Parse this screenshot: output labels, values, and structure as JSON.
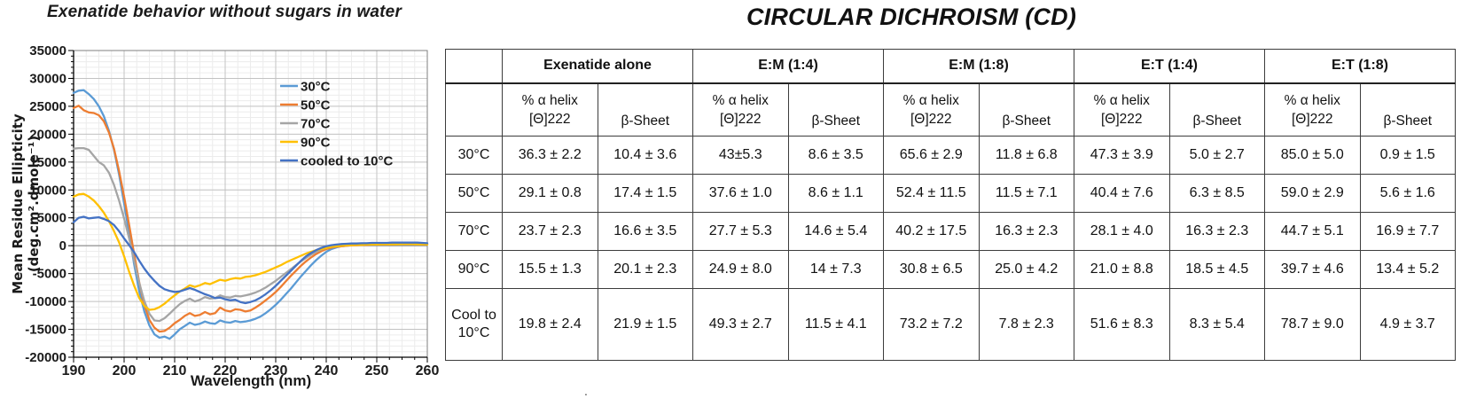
{
  "chart": {
    "title": "Exenatide behavior without sugars in water",
    "xlabel": "Wavelength (nm)",
    "ylabel": "Mean Residue Ellipticity (deg.cm².dmole⁻¹)"
  },
  "chart_data": {
    "type": "line",
    "title": "Exenatide behavior without sugars in water",
    "xlabel": "Wavelength (nm)",
    "ylabel": "Mean Residue Ellipticity (deg.cm².dmole⁻¹)",
    "xlim": [
      190,
      260
    ],
    "ylim": [
      -20000,
      35000
    ],
    "x_ticks": [
      190,
      200,
      210,
      220,
      230,
      240,
      250,
      260
    ],
    "y_ticks": [
      35000,
      30000,
      25000,
      20000,
      15000,
      10000,
      5000,
      0,
      -5000,
      -10000,
      -15000,
      -20000
    ],
    "x_minor_step": 2.5,
    "y_minor_step": 1000,
    "x_major_step": 10,
    "y_major_step": 5000,
    "grid": true,
    "legend_position": "upper-right-inside",
    "x_start": 190,
    "x_step": 1,
    "series": [
      {
        "name": "30°C",
        "color": "#5B9BD5",
        "values": [
          27400,
          27800,
          27900,
          27200,
          26300,
          25000,
          23200,
          20600,
          17200,
          12800,
          7600,
          2200,
          -3400,
          -8200,
          -11800,
          -14300,
          -15900,
          -16500,
          -16300,
          -16700,
          -15900,
          -15000,
          -14400,
          -13800,
          -14200,
          -14000,
          -13600,
          -13900,
          -14000,
          -13400,
          -13700,
          -13800,
          -13500,
          -13700,
          -13600,
          -13400,
          -13100,
          -12700,
          -12100,
          -11400,
          -10600,
          -9700,
          -8700,
          -7700,
          -6600,
          -5500,
          -4500,
          -3500,
          -2600,
          -1800,
          -1100,
          -600,
          -300,
          -100,
          0,
          100,
          150,
          200,
          200,
          250,
          250,
          300,
          300,
          300,
          350,
          350,
          350,
          350,
          350,
          300,
          300
        ]
      },
      {
        "name": "50°C",
        "color": "#ED7D31",
        "values": [
          24700,
          25100,
          24300,
          23900,
          23800,
          23400,
          22300,
          20300,
          17400,
          13400,
          8800,
          3700,
          -1600,
          -6600,
          -10600,
          -13300,
          -14700,
          -15400,
          -15300,
          -14700,
          -13900,
          -13300,
          -12600,
          -12100,
          -12600,
          -12400,
          -11900,
          -12300,
          -12100,
          -11100,
          -11600,
          -11800,
          -11400,
          -11500,
          -11800,
          -11600,
          -11100,
          -10500,
          -9800,
          -9100,
          -8300,
          -7400,
          -6400,
          -5400,
          -4500,
          -3600,
          -2800,
          -2100,
          -1500,
          -1000,
          -600,
          -350,
          -200,
          -100,
          0,
          50,
          100,
          150,
          150,
          200,
          200,
          250,
          250,
          250,
          300,
          300,
          300,
          300,
          300,
          250,
          250
        ]
      },
      {
        "name": "70°C",
        "color": "#A5A5A5",
        "values": [
          17400,
          17500,
          17500,
          17200,
          16100,
          15000,
          14400,
          13100,
          10900,
          8100,
          4900,
          1300,
          -2700,
          -6700,
          -9900,
          -12200,
          -13400,
          -13500,
          -13000,
          -12200,
          -11300,
          -10500,
          -9900,
          -9500,
          -10000,
          -9700,
          -9200,
          -9500,
          -9400,
          -8900,
          -9200,
          -9300,
          -9000,
          -9100,
          -8900,
          -8700,
          -8400,
          -8000,
          -7500,
          -6900,
          -6300,
          -5600,
          -4900,
          -4200,
          -3500,
          -2800,
          -2200,
          -1600,
          -1100,
          -700,
          -400,
          -200,
          -100,
          0,
          100,
          150,
          200,
          200,
          250,
          250,
          300,
          300,
          300,
          300,
          350,
          350,
          350,
          400,
          400,
          350,
          300
        ]
      },
      {
        "name": "90°C",
        "color": "#FFC000",
        "values": [
          8800,
          9200,
          9300,
          8800,
          8100,
          7100,
          5900,
          4400,
          2600,
          600,
          -1900,
          -4700,
          -7200,
          -9400,
          -10800,
          -11500,
          -11400,
          -11000,
          -10400,
          -9600,
          -8900,
          -8200,
          -7700,
          -7100,
          -7400,
          -7100,
          -6700,
          -6900,
          -6500,
          -6100,
          -6300,
          -6000,
          -5800,
          -5900,
          -5600,
          -5500,
          -5300,
          -5000,
          -4700,
          -4300,
          -3900,
          -3500,
          -3000,
          -2600,
          -2200,
          -1800,
          -1400,
          -1100,
          -800,
          -600,
          -400,
          -200,
          -100,
          0,
          50,
          100,
          150,
          150,
          200,
          200,
          200,
          250,
          250,
          250,
          250,
          300,
          300,
          300,
          250,
          250,
          200
        ]
      },
      {
        "name": "cooled to 10°C",
        "color": "#4472C4",
        "values": [
          4200,
          5000,
          5200,
          4900,
          5000,
          5100,
          4800,
          4400,
          3700,
          2600,
          1300,
          100,
          -1200,
          -2700,
          -4100,
          -5300,
          -6300,
          -7200,
          -7800,
          -8100,
          -8300,
          -8200,
          -7900,
          -7600,
          -7900,
          -8300,
          -8700,
          -9000,
          -9400,
          -9300,
          -9600,
          -9800,
          -9700,
          -10100,
          -10300,
          -10100,
          -9800,
          -9300,
          -8700,
          -8000,
          -7200,
          -6300,
          -5400,
          -4500,
          -3600,
          -2700,
          -1900,
          -1300,
          -800,
          -400,
          -100,
          100,
          200,
          300,
          350,
          400,
          400,
          450,
          450,
          500,
          500,
          500,
          500,
          550,
          550,
          550,
          550,
          550,
          550,
          500,
          450
        ]
      }
    ]
  },
  "table": {
    "title": "CIRCULAR DICHROISM (CD)",
    "groups": [
      "Exenatide alone",
      "E:M (1:4)",
      "E:M (1:8)",
      "E:T (1:4)",
      "E:T (1:8)"
    ],
    "sub": {
      "helix1": "% α helix",
      "helix2": "[Θ]222",
      "beta": "β-Sheet"
    },
    "rows": [
      {
        "label": "30°C",
        "values": [
          "36.3 ± 2.2",
          "10.4 ± 3.6",
          "43±5.3",
          "8.6 ± 3.5",
          "65.6 ± 2.9",
          "11.8 ± 6.8",
          "47.3 ± 3.9",
          "5.0 ± 2.7",
          "85.0 ± 5.0",
          "0.9 ± 1.5"
        ]
      },
      {
        "label": "50°C",
        "values": [
          "29.1 ± 0.8",
          "17.4 ± 1.5",
          "37.6 ± 1.0",
          "8.6 ± 1.1",
          "52.4 ± 11.5",
          "11.5 ± 7.1",
          "40.4 ± 7.6",
          "6.3 ± 8.5",
          "59.0 ± 2.9",
          "5.6 ± 1.6"
        ]
      },
      {
        "label": "70°C",
        "values": [
          "23.7 ± 2.3",
          "16.6 ± 3.5",
          "27.7 ± 5.3",
          "14.6 ± 5.4",
          "40.2 ± 17.5",
          "16.3 ± 2.3",
          "28.1 ± 4.0",
          "16.3 ± 2.3",
          "44.7 ± 5.1",
          "16.9 ± 7.7"
        ]
      },
      {
        "label": "90°C",
        "values": [
          "15.5 ± 1.3",
          "20.1 ± 2.3",
          "24.9 ± 8.0",
          "14 ± 7.3",
          "30.8 ± 6.5",
          "25.0 ± 4.2",
          "21.0 ± 8.8",
          "18.5 ± 4.5",
          "39.7 ± 4.6",
          "13.4 ± 5.2"
        ]
      },
      {
        "label": "Cool to 10°C",
        "values": [
          "19.8 ± 2.4",
          "21.9 ± 1.5",
          "49.3 ± 2.7",
          "11.5 ± 4.1",
          "73.2 ± 7.2",
          "7.8 ± 2.3",
          "51.6 ± 8.3",
          "8.3 ± 5.4",
          "78.7 ± 9.0",
          "4.9 ± 3.7"
        ]
      }
    ]
  },
  "footnote_dot": "."
}
